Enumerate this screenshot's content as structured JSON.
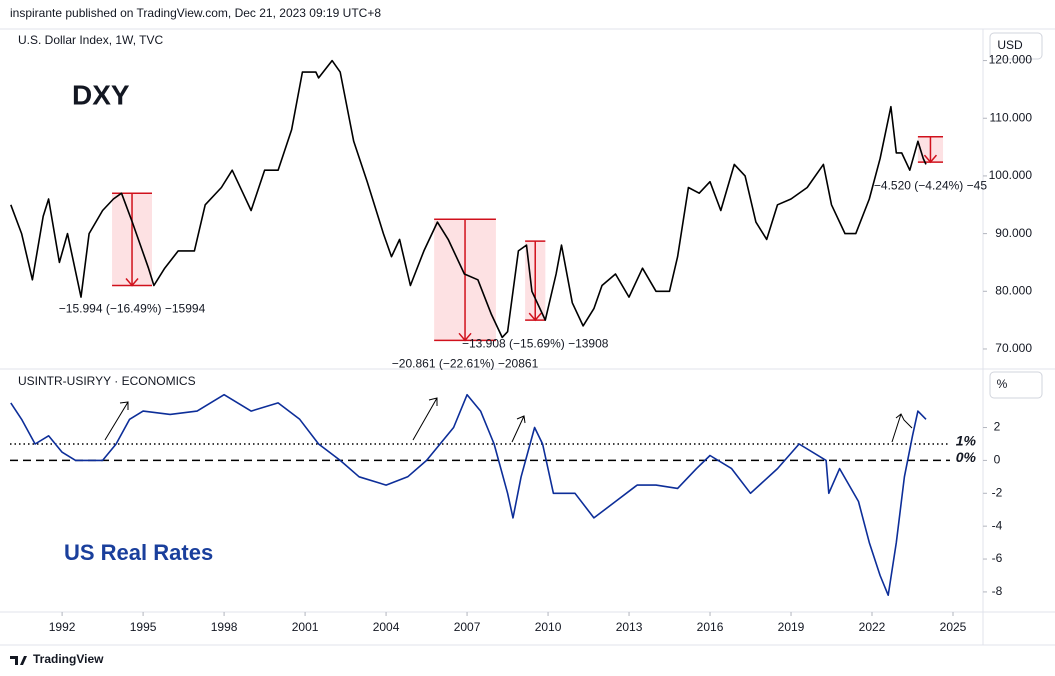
{
  "header": {
    "published": "inspirante published on TradingView.com, Dec 21, 2023 09:19 UTC+8",
    "footer": "TradingView"
  },
  "chart_data": [
    {
      "type": "line",
      "title": "U.S. Dollar Index, 1W, TVC",
      "annotation": "DXY",
      "unit": "USD",
      "color": "#000000",
      "xlim": [
        1990.07,
        2026.0
      ],
      "ylim": [
        66.7,
        125.3
      ],
      "yticks": [
        {
          "value": 70,
          "label": "70.000"
        },
        {
          "value": 80,
          "label": "80.000"
        },
        {
          "value": 90,
          "label": "90.000"
        },
        {
          "value": 100,
          "label": "100.000"
        },
        {
          "value": 110,
          "label": "110.000"
        },
        {
          "value": 120,
          "label": "120.000"
        }
      ],
      "x": [
        1990.1,
        1990.5,
        1990.9,
        1991.3,
        1991.5,
        1991.9,
        1992.2,
        1992.7,
        1993.0,
        1993.5,
        1993.9,
        1994.2,
        1994.6,
        1995.2,
        1995.4,
        1995.8,
        1996.3,
        1996.9,
        1997.3,
        1997.9,
        1998.3,
        1998.7,
        1999.0,
        1999.5,
        2000.0,
        2000.5,
        2000.9,
        2001.4,
        2001.5,
        2002.0,
        2002.3,
        2002.8,
        2003.3,
        2003.9,
        2004.2,
        2004.5,
        2004.9,
        2005.4,
        2005.9,
        2006.3,
        2006.9,
        2007.4,
        2007.9,
        2008.3,
        2008.5,
        2008.9,
        2009.2,
        2009.4,
        2009.9,
        2010.3,
        2010.5,
        2010.9,
        2011.3,
        2011.7,
        2012.0,
        2012.5,
        2013.0,
        2013.5,
        2014.0,
        2014.5,
        2014.8,
        2015.2,
        2015.6,
        2016.0,
        2016.4,
        2016.9,
        2017.3,
        2017.7,
        2018.1,
        2018.5,
        2019.0,
        2019.6,
        2020.2,
        2020.5,
        2021.0,
        2021.4,
        2021.9,
        2022.3,
        2022.7,
        2022.9,
        2023.1,
        2023.4,
        2023.7,
        2023.9,
        2024.0
      ],
      "values": [
        95,
        90,
        82,
        93,
        96,
        85,
        90,
        79,
        90,
        94,
        96,
        97,
        92,
        84,
        81,
        84,
        87,
        87,
        95,
        98,
        101,
        97,
        94,
        101,
        101,
        108,
        118,
        118,
        117,
        120,
        118,
        106,
        99,
        90,
        86,
        89,
        81,
        87,
        92,
        89,
        83,
        82,
        76,
        72,
        73,
        87,
        88,
        80,
        75,
        83,
        88,
        78,
        74,
        77,
        81,
        83,
        79,
        84,
        80,
        80,
        86,
        98,
        97,
        99,
        94,
        102,
        100,
        92,
        89,
        95,
        96,
        98,
        102,
        95,
        90,
        90,
        96,
        103,
        112,
        104,
        104,
        101,
        106,
        103,
        102
      ],
      "measures": [
        {
          "x": [
            1993.85,
            1995.33
          ],
          "y": [
            97,
            81
          ],
          "label": "−15.994 (−16.49%) −15994"
        },
        {
          "x": [
            2005.78,
            2008.07
          ],
          "y": [
            92.5,
            71.5
          ],
          "label": "−20.861 (−22.61%) −20861"
        },
        {
          "x": [
            2009.15,
            2009.9
          ],
          "y": [
            88.7,
            75.0
          ],
          "label": "−13.908 (−15.69%) −13908"
        },
        {
          "x": [
            2023.7,
            2024.63
          ],
          "y": [
            106.8,
            102.4
          ],
          "label": "−4.520 (−4.24%) −45"
        }
      ]
    },
    {
      "type": "line",
      "title": "USINTR-USIRYY · ECONOMICS",
      "annotation": "US Real Rates",
      "unit": "%",
      "color": "#0d2e99",
      "xlim": [
        1990.07,
        2026.0
      ],
      "ylim": [
        -9.1,
        5.5
      ],
      "xticks": [
        1992,
        1995,
        1998,
        2001,
        2004,
        2007,
        2010,
        2013,
        2016,
        2019,
        2022,
        2025
      ],
      "yticks": [
        -8,
        -6,
        -4,
        -2,
        0,
        2
      ],
      "reference_lines": [
        {
          "value": 1,
          "label": "1%",
          "style": "dotted"
        },
        {
          "value": 0,
          "label": "0%",
          "style": "dashed"
        }
      ],
      "x": [
        1990.1,
        1990.5,
        1991.0,
        1991.5,
        1992.0,
        1992.5,
        1993.0,
        1993.5,
        1994.0,
        1994.5,
        1995.0,
        1996.0,
        1997.0,
        1998.0,
        1999.0,
        2000.0,
        2000.8,
        2001.5,
        2002.3,
        2003.0,
        2004.0,
        2004.8,
        2005.5,
        2006.5,
        2007.0,
        2007.5,
        2008.0,
        2008.5,
        2008.7,
        2009.0,
        2009.5,
        2009.8,
        2010.2,
        2011.0,
        2011.7,
        2012.5,
        2013.3,
        2014.0,
        2014.8,
        2015.5,
        2016.0,
        2016.8,
        2017.5,
        2018.5,
        2019.3,
        2020.3,
        2020.4,
        2020.8,
        2021.5,
        2021.9,
        2022.3,
        2022.6,
        2022.9,
        2023.2,
        2023.5,
        2023.7,
        2024.0
      ],
      "values": [
        3.5,
        2.5,
        1,
        1.5,
        0.5,
        0,
        0,
        0,
        1,
        2.5,
        3,
        2.8,
        3,
        4,
        3,
        3.5,
        2.5,
        1,
        0,
        -1,
        -1.5,
        -1,
        0,
        2,
        4,
        3,
        1,
        -2,
        -3.5,
        -1,
        2,
        1,
        -2,
        -2,
        -3.5,
        -2.5,
        -1.5,
        -1.5,
        -1.7,
        -0.5,
        0.3,
        -0.5,
        -2,
        -0.5,
        1,
        0,
        -2,
        -0.5,
        -2.5,
        -5,
        -7,
        -8.2,
        -5,
        -1,
        1.5,
        3,
        2.5
      ]
    }
  ]
}
